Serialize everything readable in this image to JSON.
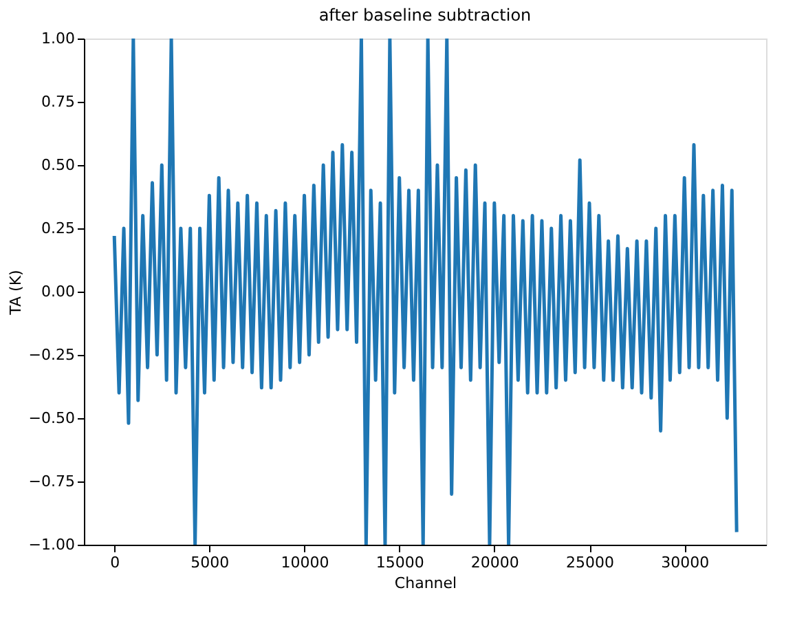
{
  "chart_data": {
    "type": "line",
    "title": "after baseline subtraction",
    "xlabel": "Channel",
    "ylabel": "TA (K)",
    "x": [
      0,
      250,
      500,
      750,
      1000,
      1250,
      1500,
      1750,
      2000,
      2250,
      2500,
      2750,
      3000,
      3250,
      3500,
      3750,
      4000,
      4250,
      4500,
      4750,
      5000,
      5250,
      5500,
      5750,
      6000,
      6250,
      6500,
      6750,
      7000,
      7250,
      7500,
      7750,
      8000,
      8250,
      8500,
      8750,
      9000,
      9250,
      9500,
      9750,
      10000,
      10250,
      10500,
      10750,
      11000,
      11250,
      11500,
      11750,
      12000,
      12250,
      12500,
      12750,
      13000,
      13250,
      13500,
      13750,
      14000,
      14250,
      14500,
      14750,
      15000,
      15250,
      15500,
      15750,
      16000,
      16250,
      16500,
      16750,
      17000,
      17250,
      17500,
      17750,
      18000,
      18250,
      18500,
      18750,
      19000,
      19250,
      19500,
      19750,
      20000,
      20250,
      20500,
      20750,
      21000,
      21250,
      21500,
      21750,
      22000,
      22250,
      22500,
      22750,
      23000,
      23250,
      23500,
      23750,
      24000,
      24250,
      24500,
      24750,
      25000,
      25250,
      25500,
      25750,
      26000,
      26250,
      26500,
      26750,
      27000,
      27250,
      27500,
      27750,
      28000,
      28250,
      28500,
      28750,
      29000,
      29250,
      29500,
      29750,
      30000,
      30250,
      30500,
      30750,
      31000,
      31250,
      31500,
      31750,
      32000,
      32250,
      32500,
      32750
    ],
    "series": [
      {
        "color": "#1f77b4",
        "values": [
          0.22,
          -0.4,
          0.25,
          -0.52,
          1.0,
          -0.43,
          0.3,
          -0.3,
          0.43,
          -0.25,
          0.5,
          -0.35,
          1.0,
          -0.4,
          0.25,
          -0.3,
          0.25,
          -1.0,
          0.25,
          -0.4,
          0.38,
          -0.35,
          0.45,
          -0.3,
          0.4,
          -0.28,
          0.35,
          -0.3,
          0.38,
          -0.32,
          0.35,
          -0.38,
          0.3,
          -0.38,
          0.32,
          -0.35,
          0.35,
          -0.3,
          0.3,
          -0.28,
          0.38,
          -0.25,
          0.42,
          -0.2,
          0.5,
          -0.18,
          0.55,
          -0.15,
          0.58,
          -0.15,
          0.55,
          -0.2,
          1.0,
          -1.0,
          0.4,
          -0.35,
          0.35,
          -1.0,
          1.0,
          -0.4,
          0.45,
          -0.3,
          0.4,
          -0.35,
          0.4,
          -1.0,
          1.0,
          -0.3,
          0.5,
          -0.3,
          1.0,
          -0.8,
          0.45,
          -0.3,
          0.48,
          -0.35,
          0.5,
          -0.3,
          0.35,
          -1.0,
          0.35,
          -0.28,
          0.3,
          -1.0,
          0.3,
          -0.35,
          0.28,
          -0.4,
          0.3,
          -0.4,
          0.28,
          -0.4,
          0.25,
          -0.38,
          0.3,
          -0.35,
          0.28,
          -0.32,
          0.52,
          -0.3,
          0.35,
          -0.3,
          0.3,
          -0.35,
          0.2,
          -0.35,
          0.22,
          -0.38,
          0.17,
          -0.38,
          0.2,
          -0.4,
          0.2,
          -0.42,
          0.25,
          -0.55,
          0.3,
          -0.35,
          0.3,
          -0.32,
          0.45,
          -0.3,
          0.58,
          -0.3,
          0.38,
          -0.3,
          0.4,
          -0.35,
          0.42,
          -0.5,
          0.4,
          -0.95
        ]
      }
    ],
    "xlim": [
      -1600,
      34300
    ],
    "xticks": [
      0,
      5000,
      10000,
      15000,
      20000,
      25000,
      30000
    ],
    "ylim": [
      -1.0,
      1.0
    ],
    "yticks": [
      {
        "value": -1.0,
        "label": "−1.00"
      },
      {
        "value": -0.75,
        "label": "−0.75"
      },
      {
        "value": -0.5,
        "label": "−0.50"
      },
      {
        "value": -0.25,
        "label": "−0.25"
      },
      {
        "value": 0.0,
        "label": "0.00"
      },
      {
        "value": 0.25,
        "label": "0.25"
      },
      {
        "value": 0.5,
        "label": "0.50"
      },
      {
        "value": 0.75,
        "label": "0.75"
      },
      {
        "value": 1.0,
        "label": "1.00"
      }
    ],
    "grid": false,
    "marker": "none",
    "line_style": "solid"
  }
}
